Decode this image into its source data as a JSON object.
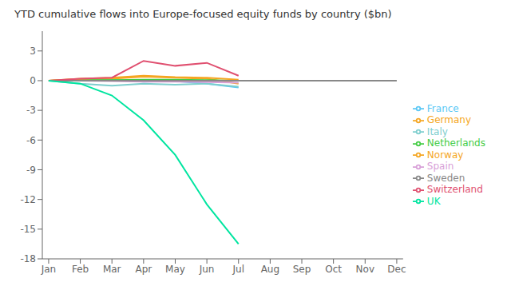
{
  "chart_data": {
    "type": "line",
    "title": "YTD cumulative flows into Europe-focused equity funds by country ($bn)",
    "xlim": [
      0.8,
      12.2
    ],
    "xticks": [
      {
        "value": 1,
        "label": "Jan"
      },
      {
        "value": 2,
        "label": "Feb"
      },
      {
        "value": 3,
        "label": "Mar"
      },
      {
        "value": 4,
        "label": "Apr"
      },
      {
        "value": 5,
        "label": "May"
      },
      {
        "value": 6,
        "label": "Jun"
      },
      {
        "value": 7,
        "label": "Jul"
      },
      {
        "value": 8,
        "label": "Aug"
      },
      {
        "value": 9,
        "label": "Sep"
      },
      {
        "value": 10,
        "label": "Oct"
      },
      {
        "value": 11,
        "label": "Nov"
      },
      {
        "value": 12,
        "label": "Dec"
      }
    ],
    "ylim": [
      -18,
      5
    ],
    "yticks": [
      3,
      0,
      -3,
      -6,
      -9,
      -12,
      -15,
      -18
    ],
    "grid": false,
    "legend": "right",
    "series": [
      {
        "name": "France",
        "color": "#5bc8f5",
        "x": [
          1,
          2,
          3,
          4,
          5,
          6,
          7
        ],
        "values": [
          0.0,
          0.05,
          0.1,
          -0.1,
          -0.05,
          -0.3,
          -0.7
        ]
      },
      {
        "name": "Germany",
        "color": "#f5a623",
        "x": [
          1,
          2,
          3,
          4,
          5,
          6,
          7
        ],
        "values": [
          0.0,
          0.15,
          0.2,
          0.4,
          0.3,
          0.2,
          -0.3
        ]
      },
      {
        "name": "Italy",
        "color": "#7ecece",
        "x": [
          1,
          2,
          3,
          4,
          5,
          6,
          7
        ],
        "values": [
          0.0,
          -0.3,
          -0.5,
          -0.3,
          -0.4,
          -0.3,
          -0.6
        ]
      },
      {
        "name": "Netherlands",
        "color": "#44cc44",
        "x": [
          1,
          2,
          3,
          4,
          5,
          6,
          7
        ],
        "values": [
          0.0,
          0.05,
          0.05,
          0.1,
          0.1,
          0.05,
          0.0
        ]
      },
      {
        "name": "Norway",
        "color": "#f5a623",
        "x": [
          1,
          2,
          3,
          4,
          5,
          6,
          7
        ],
        "values": [
          0.0,
          0.2,
          0.3,
          0.5,
          0.35,
          0.3,
          0.1
        ]
      },
      {
        "name": "Spain",
        "color": "#d8a0d8",
        "x": [
          1,
          2,
          3,
          4,
          5,
          6,
          7
        ],
        "values": [
          0.0,
          0.0,
          -0.05,
          -0.1,
          -0.1,
          -0.15,
          -0.2
        ]
      },
      {
        "name": "Sweden",
        "color": "#888888",
        "x": [
          1,
          12
        ],
        "values": [
          0.0,
          0.0
        ]
      },
      {
        "name": "Switzerland",
        "color": "#e05070",
        "x": [
          1,
          2,
          3,
          4,
          5,
          6,
          7
        ],
        "values": [
          0.0,
          0.2,
          0.3,
          2.0,
          1.5,
          1.8,
          0.5
        ]
      },
      {
        "name": "UK",
        "color": "#00e5a0",
        "x": [
          1,
          2,
          3,
          4,
          5,
          6,
          7
        ],
        "values": [
          0.0,
          -0.3,
          -1.5,
          -4.0,
          -7.5,
          -12.5,
          -16.5
        ]
      }
    ]
  }
}
